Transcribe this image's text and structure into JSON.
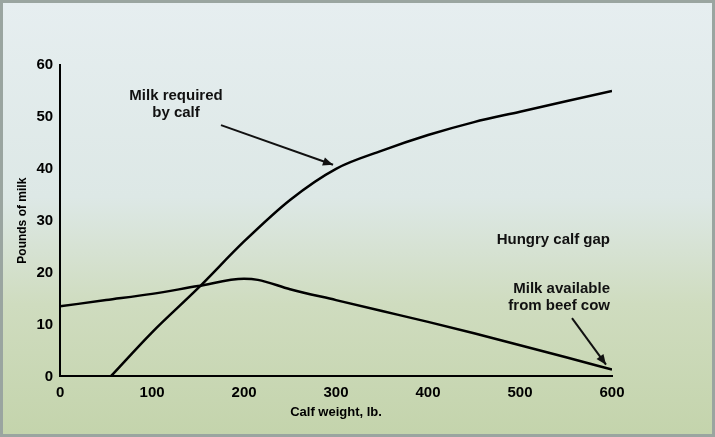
{
  "chart_data": {
    "type": "line",
    "x_label": "Calf weight, lb.",
    "y_label": "Pounds of milk",
    "xlim": [
      0,
      600
    ],
    "xticks": [
      0,
      100,
      200,
      300,
      400,
      500,
      600
    ],
    "ylim": [
      0,
      60
    ],
    "yticks": [
      0,
      10,
      20,
      30,
      40,
      50,
      60
    ],
    "grid": false,
    "series": [
      {
        "name": "Milk required by calf",
        "color": "#000000",
        "x": [
          55,
          100,
          150,
          200,
          250,
          300,
          350,
          400,
          450,
          500,
          550,
          600
        ],
        "values": [
          0,
          8.5,
          17,
          26,
          34,
          40,
          43.5,
          46.5,
          49,
          51,
          53,
          55
        ]
      },
      {
        "name": "Milk available from beef cow",
        "color": "#000000",
        "x": [
          0,
          50,
          100,
          150,
          200,
          215,
          250,
          300,
          350,
          400,
          450,
          500,
          550,
          600
        ],
        "values": [
          13.5,
          14.7,
          15.9,
          17.4,
          18.8,
          18.6,
          16.8,
          14.7,
          12.6,
          10.5,
          8.3,
          6.0,
          3.7,
          1.3
        ]
      }
    ],
    "annotations": [
      "Hungry calf gap"
    ]
  }
}
